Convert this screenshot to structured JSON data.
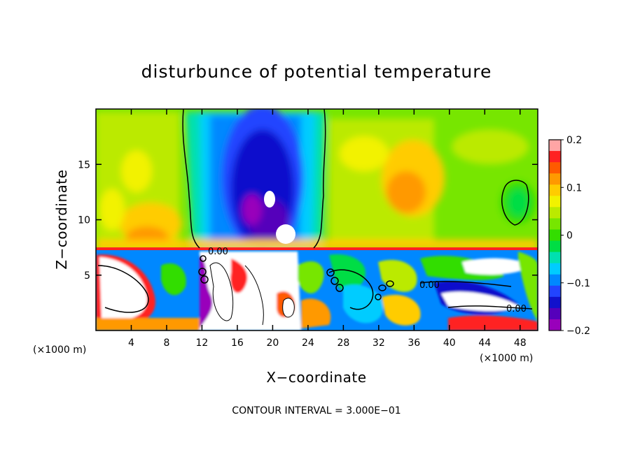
{
  "chart_data": {
    "type": "heatmap",
    "title": "disturbunce of potential temperature",
    "xlabel": "X−coordinate",
    "ylabel": "Z−coordinate",
    "x_unit_left": "(×1000 m)",
    "x_unit_right": "(×1000 m)",
    "xlim": [
      0,
      50
    ],
    "ylim": [
      0,
      20
    ],
    "x_ticks": [
      4,
      8,
      12,
      16,
      20,
      24,
      28,
      32,
      36,
      40,
      44,
      48
    ],
    "x_tick_labels": [
      "4",
      "8",
      "12",
      "16",
      "20",
      "24",
      "28",
      "32",
      "36",
      "40",
      "44",
      "48"
    ],
    "y_ticks": [
      5,
      10,
      15
    ],
    "y_tick_labels": [
      "5",
      "10",
      "15"
    ],
    "colorbar": {
      "range": [
        -0.2,
        0.2
      ],
      "ticks": [
        0.2,
        0.1,
        0,
        -0.1,
        -0.2
      ],
      "tick_labels": [
        "0.2",
        "0.1",
        "0",
        "−0.1",
        "−0.2"
      ],
      "colors": [
        "#FFA5A5",
        "#FF2222",
        "#FF5A00",
        "#FF9900",
        "#FFCC00",
        "#F2F200",
        "#BBEA00",
        "#77E600",
        "#33DD00",
        "#00DD44",
        "#00E0B0",
        "#00CCFF",
        "#0088FF",
        "#2244FF",
        "#1111CC",
        "#5500BB",
        "#9900BB"
      ]
    },
    "contour_labels": [
      "0.00",
      "0.00",
      "0.00"
    ],
    "annotation": "CONTOUR INTERVAL = 3.000E−01"
  }
}
